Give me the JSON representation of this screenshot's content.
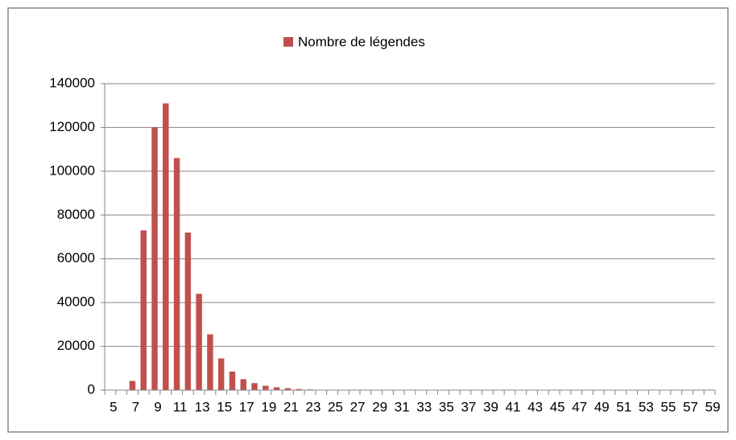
{
  "chart_data": {
    "type": "bar",
    "legend_label": "Nombre de légendes",
    "categories": [
      "5",
      null,
      "7",
      null,
      "9",
      null,
      "11",
      null,
      "13",
      null,
      "15",
      null,
      "17",
      null,
      "19",
      null,
      "21",
      null,
      "23",
      null,
      "25",
      null,
      "27",
      null,
      "29",
      null,
      "31",
      null,
      "33",
      null,
      "35",
      null,
      "37",
      null,
      "39",
      null,
      "41",
      null,
      "43",
      null,
      "45",
      null,
      "47",
      null,
      "49",
      null,
      "51",
      null,
      "53",
      null,
      "55",
      null,
      "57",
      null,
      "59"
    ],
    "values": [
      0,
      0,
      4200,
      73000,
      120000,
      131000,
      106000,
      72000,
      44000,
      25500,
      14500,
      8500,
      5000,
      3200,
      2000,
      1300,
      900,
      500,
      300,
      150,
      100,
      0,
      0,
      0,
      0,
      0,
      0,
      0,
      0,
      0,
      0,
      0,
      0,
      0,
      0,
      0,
      0,
      0,
      0,
      0,
      0,
      0,
      0,
      0,
      0,
      0,
      0,
      0,
      0,
      0,
      0,
      0,
      0,
      0,
      0
    ],
    "color": "#c0504d",
    "ylim": [
      0,
      140000
    ],
    "yticks": [
      0,
      20000,
      40000,
      60000,
      80000,
      100000,
      120000,
      140000
    ],
    "grid": true,
    "legend_position": "top"
  }
}
